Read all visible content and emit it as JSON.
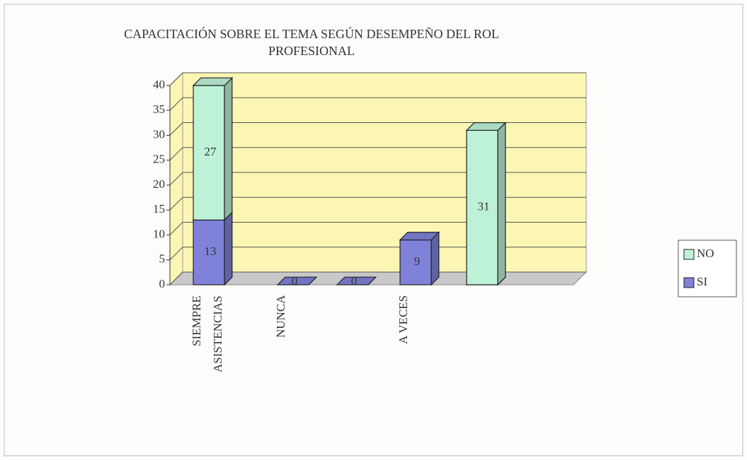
{
  "chart_data": {
    "type": "bar3d_stacked",
    "title": "CAPACITACIÓN SOBRE EL TEMA SEGÚN DESEMPEÑO DEL ROL PROFESIONAL",
    "categories": [
      "SIEMPRE ASISTENCIAS",
      "NUNCA",
      null,
      "A VECES",
      null
    ],
    "series": [
      {
        "name": "SI",
        "color": "#7f82d8",
        "values": [
          13,
          0,
          0,
          9,
          0
        ]
      },
      {
        "name": "NO",
        "color": "#bdf2d6",
        "values": [
          27,
          null,
          null,
          null,
          31
        ]
      }
    ],
    "ylim": [
      0,
      40
    ],
    "yticks": [
      0,
      5,
      10,
      15,
      20,
      25,
      30,
      35,
      40
    ],
    "grid": true,
    "legend": "right",
    "wall_color": "#fbf6b4"
  }
}
